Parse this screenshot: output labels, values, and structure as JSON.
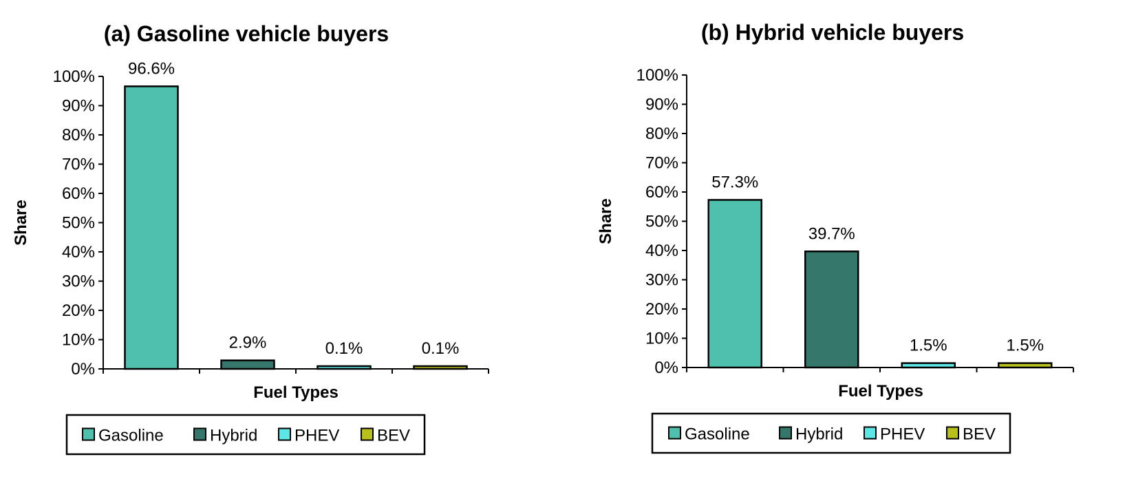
{
  "chart_data": [
    {
      "type": "bar",
      "title": "(a) Gasoline vehicle buyers",
      "xlabel": "Fuel Types",
      "ylabel": "Share",
      "categories": [
        "Gasoline",
        "Hybrid",
        "PHEV",
        "BEV"
      ],
      "values": [
        96.6,
        2.9,
        0.1,
        0.1
      ],
      "data_labels": [
        "96.6%",
        "2.9%",
        "0.1%",
        "0.1%"
      ],
      "ylim": [
        0,
        100
      ],
      "yticks": [
        0,
        10,
        20,
        30,
        40,
        50,
        60,
        70,
        80,
        90,
        100
      ],
      "ytick_labels": [
        "0%",
        "10%",
        "20%",
        "30%",
        "40%",
        "50%",
        "60%",
        "70%",
        "80%",
        "90%",
        "100%"
      ],
      "grid": false,
      "legend": {
        "placement": "bottom",
        "entries": [
          "Gasoline",
          "Hybrid",
          "PHEV",
          "BEV"
        ]
      }
    },
    {
      "type": "bar",
      "title": "(b) Hybrid vehicle buyers",
      "xlabel": "Fuel Types",
      "ylabel": "Share",
      "categories": [
        "Gasoline",
        "Hybrid",
        "PHEV",
        "BEV"
      ],
      "values": [
        57.3,
        39.7,
        1.5,
        1.5
      ],
      "data_labels": [
        "57.3%",
        "39.7%",
        "1.5%",
        "1.5%"
      ],
      "ylim": [
        0,
        100
      ],
      "yticks": [
        0,
        10,
        20,
        30,
        40,
        50,
        60,
        70,
        80,
        90,
        100
      ],
      "ytick_labels": [
        "0%",
        "10%",
        "20%",
        "30%",
        "40%",
        "50%",
        "60%",
        "70%",
        "80%",
        "90%",
        "100%"
      ],
      "grid": false,
      "legend": {
        "placement": "bottom",
        "entries": [
          "Gasoline",
          "Hybrid",
          "PHEV",
          "BEV"
        ]
      }
    }
  ],
  "colors": {
    "Gasoline": "#4fbfae",
    "Hybrid": "#36776b",
    "PHEV": "#5ce6e6",
    "BEV": "#b8c11c",
    "outline": "#000000"
  }
}
